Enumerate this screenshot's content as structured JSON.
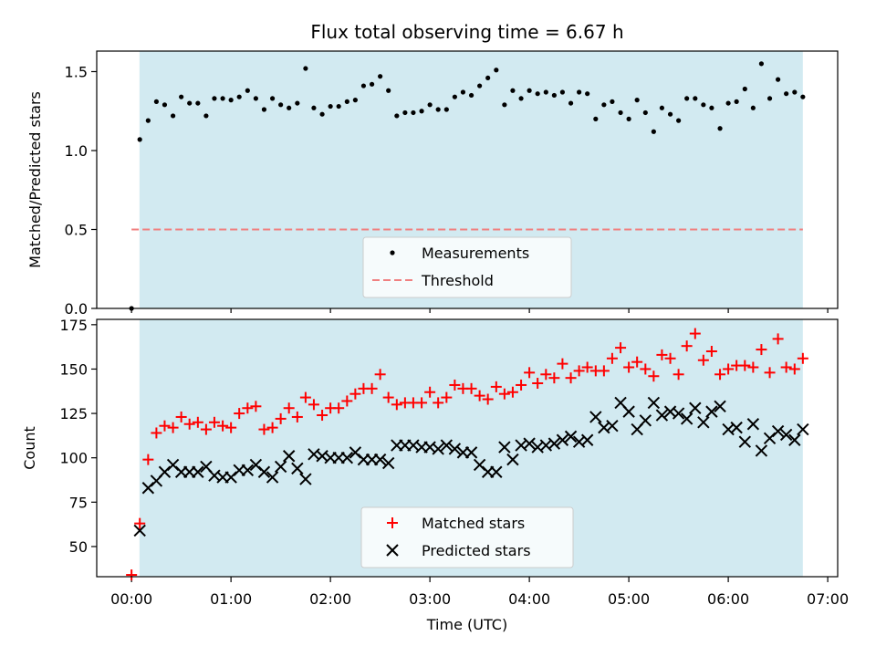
{
  "chart_data": [
    {
      "type": "scatter",
      "title": "Flux total observing time = 6.67 h",
      "xlabel": "",
      "ylabel": "Matched/Predicted stars",
      "xlim": [
        -0.35,
        7.1
      ],
      "ylim": [
        0.0,
        1.63
      ],
      "yticks": [
        0.0,
        0.5,
        1.0,
        1.5
      ],
      "ytick_labels": [
        "0.0",
        "0.5",
        "1.0",
        "1.5"
      ],
      "shaded_span": {
        "x0": 0.08,
        "x1": 6.75,
        "color": "#add8e6"
      },
      "series": [
        {
          "name": "Measurements",
          "marker": "dot",
          "color": "#000000",
          "x": [
            0.0,
            0.083,
            0.167,
            0.25,
            0.333,
            0.417,
            0.5,
            0.583,
            0.667,
            0.75,
            0.833,
            0.917,
            1.0,
            1.083,
            1.167,
            1.25,
            1.333,
            1.417,
            1.5,
            1.583,
            1.667,
            1.75,
            1.833,
            1.917,
            2.0,
            2.083,
            2.167,
            2.25,
            2.333,
            2.417,
            2.5,
            2.583,
            2.667,
            2.75,
            2.833,
            2.917,
            3.0,
            3.083,
            3.167,
            3.25,
            3.333,
            3.417,
            3.5,
            3.583,
            3.667,
            3.75,
            3.833,
            3.917,
            4.0,
            4.083,
            4.167,
            4.25,
            4.333,
            4.417,
            4.5,
            4.583,
            4.667,
            4.75,
            4.833,
            4.917,
            5.0,
            5.083,
            5.167,
            5.25,
            5.333,
            5.417,
            5.5,
            5.583,
            5.667,
            5.75,
            5.833,
            5.917,
            6.0,
            6.083,
            6.167,
            6.25,
            6.333,
            6.417,
            6.5,
            6.583,
            6.667,
            6.75
          ],
          "y": [
            0.0,
            1.07,
            1.19,
            1.31,
            1.29,
            1.22,
            1.34,
            1.3,
            1.3,
            1.22,
            1.33,
            1.33,
            1.32,
            1.34,
            1.38,
            1.33,
            1.26,
            1.33,
            1.29,
            1.27,
            1.3,
            1.52,
            1.27,
            1.23,
            1.28,
            1.28,
            1.31,
            1.32,
            1.41,
            1.42,
            1.47,
            1.38,
            1.22,
            1.24,
            1.24,
            1.25,
            1.29,
            1.26,
            1.26,
            1.34,
            1.37,
            1.35,
            1.41,
            1.46,
            1.51,
            1.29,
            1.38,
            1.33,
            1.38,
            1.36,
            1.37,
            1.35,
            1.37,
            1.3,
            1.37,
            1.36,
            1.2,
            1.29,
            1.31,
            1.24,
            1.2,
            1.32,
            1.24,
            1.12,
            1.27,
            1.23,
            1.19,
            1.33,
            1.33,
            1.29,
            1.27,
            1.14,
            1.3,
            1.31,
            1.39,
            1.27,
            1.55,
            1.33,
            1.45,
            1.36,
            1.37,
            1.34
          ]
        },
        {
          "name": "Threshold",
          "style": "dashed-line",
          "color": "#f08080",
          "x": [
            0.0,
            6.75
          ],
          "y": [
            0.5,
            0.5
          ]
        }
      ],
      "legend": {
        "placement": "lower-center",
        "entries": [
          "Measurements",
          "Threshold"
        ]
      }
    },
    {
      "type": "scatter",
      "title": "",
      "xlabel": "Time (UTC)",
      "ylabel": "Count",
      "xlim": [
        -0.35,
        7.1
      ],
      "ylim": [
        33,
        178
      ],
      "yticks": [
        50,
        75,
        100,
        125,
        150,
        175
      ],
      "ytick_labels": [
        "50",
        "75",
        "100",
        "125",
        "150",
        "175"
      ],
      "xticks": [
        0,
        1,
        2,
        3,
        4,
        5,
        6,
        7
      ],
      "xtick_labels": [
        "00:00",
        "01:00",
        "02:00",
        "03:00",
        "04:00",
        "05:00",
        "06:00",
        "07:00"
      ],
      "shaded_span": {
        "x0": 0.08,
        "x1": 6.75,
        "color": "#add8e6"
      },
      "series": [
        {
          "name": "Matched stars",
          "marker": "plus",
          "color": "#ff0000",
          "x": [
            0.0,
            0.083,
            0.167,
            0.25,
            0.333,
            0.417,
            0.5,
            0.583,
            0.667,
            0.75,
            0.833,
            0.917,
            1.0,
            1.083,
            1.167,
            1.25,
            1.333,
            1.417,
            1.5,
            1.583,
            1.667,
            1.75,
            1.833,
            1.917,
            2.0,
            2.083,
            2.167,
            2.25,
            2.333,
            2.417,
            2.5,
            2.583,
            2.667,
            2.75,
            2.833,
            2.917,
            3.0,
            3.083,
            3.167,
            3.25,
            3.333,
            3.417,
            3.5,
            3.583,
            3.667,
            3.75,
            3.833,
            3.917,
            4.0,
            4.083,
            4.167,
            4.25,
            4.333,
            4.417,
            4.5,
            4.583,
            4.667,
            4.75,
            4.833,
            4.917,
            5.0,
            5.083,
            5.167,
            5.25,
            5.333,
            5.417,
            5.5,
            5.583,
            5.667,
            5.75,
            5.833,
            5.917,
            6.0,
            6.083,
            6.167,
            6.25,
            6.333,
            6.417,
            6.5,
            6.583,
            6.667,
            6.75
          ],
          "y": [
            34,
            63,
            99,
            114,
            118,
            117,
            123,
            119,
            120,
            116,
            120,
            118,
            117,
            125,
            128,
            129,
            116,
            117,
            122,
            128,
            123,
            134,
            130,
            124,
            128,
            128,
            132,
            136,
            139,
            139,
            147,
            134,
            130,
            131,
            131,
            131,
            137,
            131,
            134,
            141,
            139,
            139,
            135,
            133,
            140,
            136,
            137,
            141,
            148,
            142,
            147,
            145,
            153,
            145,
            149,
            151,
            149,
            149,
            156,
            162,
            151,
            154,
            150,
            146,
            158,
            156,
            147,
            163,
            170,
            155,
            160,
            147,
            150,
            152,
            152,
            151,
            161,
            148,
            167,
            151,
            150,
            156
          ]
        },
        {
          "name": "Predicted stars",
          "marker": "x",
          "color": "#000000",
          "x": [
            0.083,
            0.167,
            0.25,
            0.333,
            0.417,
            0.5,
            0.583,
            0.667,
            0.75,
            0.833,
            0.917,
            1.0,
            1.083,
            1.167,
            1.25,
            1.333,
            1.417,
            1.5,
            1.583,
            1.667,
            1.75,
            1.833,
            1.917,
            2.0,
            2.083,
            2.167,
            2.25,
            2.333,
            2.417,
            2.5,
            2.583,
            2.667,
            2.75,
            2.833,
            2.917,
            3.0,
            3.083,
            3.167,
            3.25,
            3.333,
            3.417,
            3.5,
            3.583,
            3.667,
            3.75,
            3.833,
            3.917,
            4.0,
            4.083,
            4.167,
            4.25,
            4.333,
            4.417,
            4.5,
            4.583,
            4.667,
            4.75,
            4.833,
            4.917,
            5.0,
            5.083,
            5.167,
            5.25,
            5.333,
            5.417,
            5.5,
            5.583,
            5.667,
            5.75,
            5.833,
            5.917,
            6.0,
            6.083,
            6.167,
            6.25,
            6.333,
            6.417,
            6.5,
            6.583,
            6.667,
            6.75
          ],
          "y": [
            59,
            83,
            87,
            92,
            96,
            92,
            92,
            92,
            95,
            90,
            89,
            89,
            93,
            93,
            96,
            92,
            89,
            95,
            101,
            94,
            88,
            102,
            101,
            100,
            100,
            100,
            103,
            99,
            99,
            99,
            97,
            107,
            107,
            107,
            106,
            106,
            105,
            107,
            105,
            103,
            103,
            96,
            92,
            92,
            106,
            99,
            107,
            108,
            106,
            107,
            108,
            110,
            112,
            109,
            110,
            123,
            117,
            118,
            131,
            126,
            116,
            121,
            131,
            124,
            126,
            125,
            122,
            128,
            120,
            126,
            129,
            116,
            117,
            109,
            119,
            104,
            111,
            115,
            113,
            110,
            116
          ]
        }
      ],
      "legend": {
        "placement": "lower-center",
        "entries": [
          "Matched stars",
          "Predicted stars"
        ]
      }
    }
  ]
}
